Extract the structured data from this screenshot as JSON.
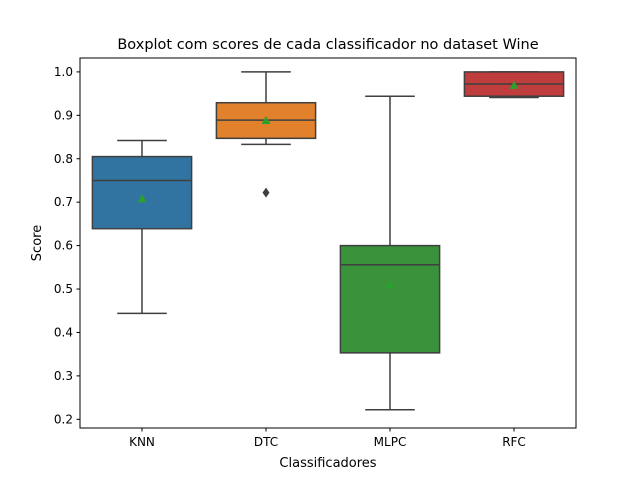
{
  "chart_data": {
    "type": "box",
    "title": "Boxplot com scores de cada classificador no dataset Wine",
    "xlabel": "Classificadores",
    "ylabel": "Score",
    "ylim": [
      0.18,
      1.032
    ],
    "yticks": [
      0.2,
      0.3,
      0.4,
      0.5,
      0.6,
      0.7,
      0.8,
      0.9,
      1.0
    ],
    "ytick_labels": [
      "0.2",
      "0.3",
      "0.4",
      "0.5",
      "0.6",
      "0.7",
      "0.8",
      "0.9",
      "1.0"
    ],
    "grid": false,
    "legend": "none",
    "categories": [
      "KNN",
      "DTC",
      "MLPC",
      "RFC"
    ],
    "colors": [
      "#3274a1",
      "#e1812c",
      "#3a923a",
      "#c03d3e"
    ],
    "mean_marker_color": "#2ca02c",
    "boxes": [
      {
        "name": "KNN",
        "whislo": 0.444,
        "q1": 0.639,
        "median": 0.75,
        "q3": 0.805,
        "whishi": 0.842,
        "mean": 0.708,
        "fliers": []
      },
      {
        "name": "DTC",
        "whislo": 0.833,
        "q1": 0.847,
        "median": 0.889,
        "q3": 0.929,
        "whishi": 1.0,
        "mean": 0.888,
        "fliers": [
          0.722
        ]
      },
      {
        "name": "MLPC",
        "whislo": 0.222,
        "q1": 0.353,
        "median": 0.556,
        "q3": 0.6,
        "whishi": 0.944,
        "mean": 0.51,
        "fliers": []
      },
      {
        "name": "RFC",
        "whislo": 0.941,
        "q1": 0.944,
        "median": 0.972,
        "q3": 1.0,
        "whishi": 1.0,
        "mean": 0.969,
        "fliers": []
      }
    ]
  }
}
